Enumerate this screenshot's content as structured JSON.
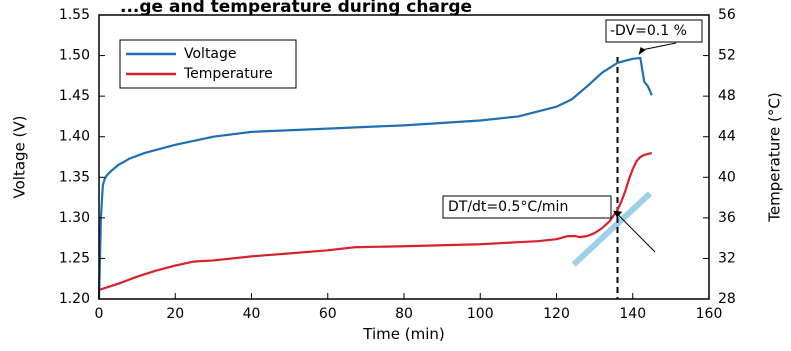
{
  "chart_data": {
    "type": "line",
    "title": "...ge and temperature during charge",
    "xlabel": "Time (min)",
    "ylabel_left": "Voltage (V)",
    "ylabel_right": "Temperature (°C)",
    "xlim": [
      0,
      160
    ],
    "ylim_left": [
      1.2,
      1.55
    ],
    "ylim_right": [
      28,
      56
    ],
    "x_ticks": [
      "0",
      "20",
      "40",
      "60",
      "80",
      "100",
      "120",
      "140",
      "160"
    ],
    "y_left_ticks": [
      "1.20",
      "1.25",
      "1.30",
      "1.35",
      "1.40",
      "1.45",
      "1.50",
      "1.55"
    ],
    "y_right_ticks": [
      "28",
      "32",
      "36",
      "40",
      "44",
      "48",
      "52",
      "56"
    ],
    "grid": false,
    "legend_position": "top-left",
    "series": [
      {
        "name": "Voltage",
        "axis": "left",
        "color": "#1f6fb4",
        "x": [
          0,
          0.5,
          1,
          1.5,
          2,
          3,
          5,
          8,
          12,
          20,
          30,
          40,
          60,
          80,
          100,
          110,
          115,
          120,
          124,
          128,
          132,
          136,
          140,
          142,
          143,
          144,
          145
        ],
        "y": [
          1.2,
          1.3,
          1.34,
          1.348,
          1.352,
          1.357,
          1.365,
          1.373,
          1.38,
          1.39,
          1.4,
          1.406,
          1.41,
          1.414,
          1.42,
          1.425,
          1.431,
          1.437,
          1.446,
          1.462,
          1.479,
          1.491,
          1.496,
          1.497,
          1.468,
          1.462,
          1.451
        ]
      },
      {
        "name": "Temperature",
        "axis": "right",
        "color": "#d8212f",
        "x": [
          0,
          5,
          10,
          15,
          20,
          25,
          30,
          40,
          50,
          60,
          67,
          80,
          100,
          110,
          115,
          120,
          123,
          125,
          126,
          128,
          130,
          132,
          134,
          136,
          137,
          138,
          139,
          140,
          141,
          142,
          143,
          144,
          145
        ],
        "y": [
          28.9,
          29.5,
          30.2,
          30.8,
          31.3,
          31.7,
          31.8,
          32.2,
          32.5,
          32.8,
          33.1,
          33.2,
          33.4,
          33.6,
          33.7,
          33.9,
          34.2,
          34.2,
          34.1,
          34.2,
          34.5,
          35.0,
          35.7,
          36.8,
          37.6,
          38.6,
          39.8,
          40.8,
          41.6,
          42.0,
          42.2,
          42.3,
          42.4
        ]
      }
    ],
    "annotations": [
      {
        "text": "-DV=0.1 %",
        "points_to": {
          "x": 141,
          "y": 1.497,
          "axis": "left"
        }
      },
      {
        "text": "DT/dt=0.5°C/min",
        "points_to": {
          "x": 138,
          "y": 37.0,
          "axis": "right"
        }
      }
    ],
    "cutoff_time": 136,
    "slope_line": {
      "color": "#9fd0e8",
      "x": [
        124.5,
        144.5
      ],
      "y_right": [
        31.4,
        38.4
      ]
    }
  }
}
